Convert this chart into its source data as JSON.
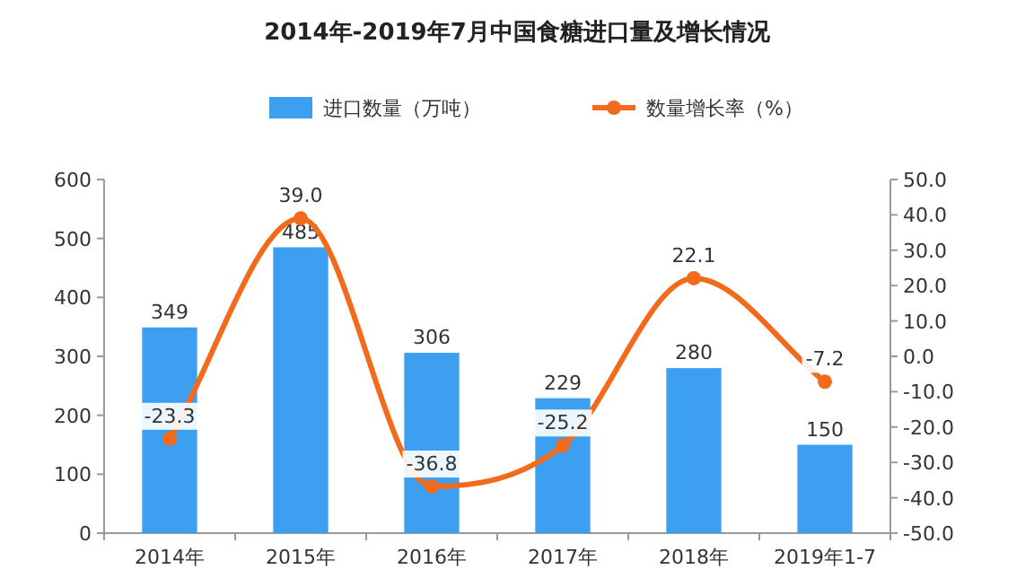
{
  "chart_data": {
    "type": "bar",
    "title": "2014年-2019年7月中国食糖进口量及增长情况",
    "categories": [
      "2014年",
      "2015年",
      "2016年",
      "2017年",
      "2018年",
      "2019年1-7"
    ],
    "series": [
      {
        "name": "进口数量（万吨）",
        "color": "#3d9ff0",
        "values": [
          349,
          485,
          306,
          229,
          280,
          150
        ],
        "value_labels": [
          "349",
          "485",
          "306",
          "229",
          "280",
          "150"
        ]
      },
      {
        "name": "数量增长率（%）",
        "type": "line",
        "axis": "y2",
        "color": "#f26b1d",
        "marker": "circle",
        "values": [
          -23.3,
          39.0,
          -36.8,
          -25.2,
          22.1,
          -7.2
        ],
        "value_labels": [
          "-23.3",
          "39.0",
          "-36.8",
          "-25.2",
          "22.1",
          "-7.2"
        ]
      }
    ],
    "ylim": [
      0,
      600
    ],
    "yticks": [
      0,
      100,
      200,
      300,
      400,
      500,
      600
    ],
    "y2lim": [
      -50,
      50
    ],
    "y2ticks": [
      {
        "value": 50,
        "label": "50.0"
      },
      {
        "value": 40,
        "label": "40.0"
      },
      {
        "value": 30,
        "label": "30.0"
      },
      {
        "value": 20,
        "label": "20.0"
      },
      {
        "value": 10,
        "label": "10.0"
      },
      {
        "value": 0,
        "label": "0.0"
      },
      {
        "value": -10,
        "label": "-10.0"
      },
      {
        "value": -20,
        "label": "-20.0"
      },
      {
        "value": -30,
        "label": "-30.0"
      },
      {
        "value": -40,
        "label": "-40.0"
      },
      {
        "value": -50,
        "label": "-50.0"
      }
    ],
    "legend": "top",
    "grid": false
  }
}
